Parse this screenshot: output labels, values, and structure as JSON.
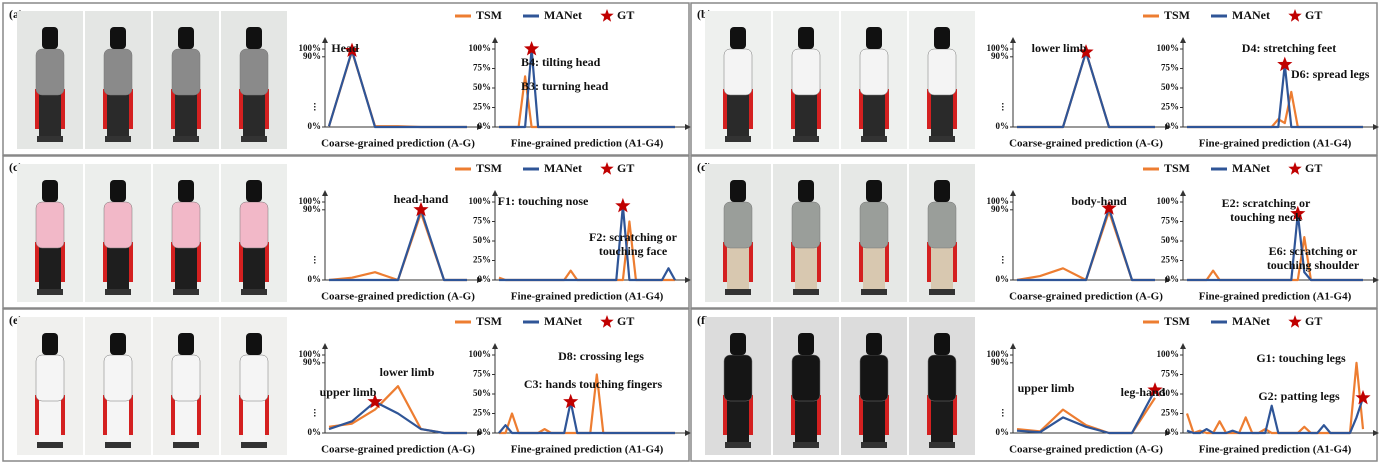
{
  "panels": [
    {
      "label": "(a)",
      "legend": {
        "series": [
          "TSM",
          "MANet"
        ],
        "colors": [
          "#ed7d31",
          "#2f5597"
        ],
        "gt": "GT",
        "gt_color": "#c00000"
      },
      "coarse": {
        "type": "line",
        "xlabel": "Coarse-grained prediction (A-G)",
        "ylim": [
          0,
          100
        ],
        "yticks": [
          {
            "value": 0,
            "label": "0%"
          },
          {
            "value": 90,
            "label": "90%"
          },
          {
            "value": 100,
            "label": "100%"
          }
        ],
        "series": [
          {
            "values": [
              1,
              97,
              1,
              1,
              0,
              0,
              0
            ]
          },
          {
            "values": [
              1,
              98,
              0,
              0,
              0,
              0,
              0
            ]
          }
        ],
        "gt": 1,
        "annotations": [
          [
            "Head"
          ]
        ]
      },
      "fine": {
        "type": "line",
        "xlabel": "Fine-grained prediction (A1-G4)",
        "ylim": [
          0,
          100
        ],
        "yticks": [
          {
            "value": 0,
            "label": "0%"
          },
          {
            "value": 25,
            "label": "25%"
          },
          {
            "value": 50,
            "label": "50%"
          },
          {
            "value": 75,
            "label": "75%"
          },
          {
            "value": 100,
            "label": "100%"
          }
        ],
        "series": [
          {
            "values": [
              0,
              0,
              0,
              0,
              65,
              0,
              0,
              0,
              0,
              0,
              0,
              0,
              0,
              0,
              0,
              0,
              0,
              0,
              0,
              0,
              0,
              0,
              0,
              0,
              0,
              0,
              0,
              0
            ]
          },
          {
            "values": [
              0,
              0,
              0,
              0,
              0,
              100,
              0,
              0,
              0,
              0,
              0,
              0,
              0,
              0,
              0,
              0,
              0,
              0,
              0,
              0,
              0,
              0,
              0,
              0,
              0,
              0,
              0,
              0
            ]
          }
        ],
        "gt": 5,
        "annotations": [
          [
            "B4: tilting head"
          ],
          [
            "B3: turning head"
          ]
        ]
      }
    },
    {
      "label": "(b)",
      "legend": {
        "series": [
          "TSM",
          "MANet"
        ],
        "colors": [
          "#ed7d31",
          "#2f5597"
        ],
        "gt": "GT",
        "gt_color": "#c00000"
      },
      "coarse": {
        "type": "line",
        "xlabel": "Coarse-grained prediction (A-G)",
        "ylim": [
          0,
          100
        ],
        "yticks": [
          {
            "value": 0,
            "label": "0%"
          },
          {
            "value": 90,
            "label": "90%"
          },
          {
            "value": 100,
            "label": "100%"
          }
        ],
        "series": [
          {
            "values": [
              0,
              0,
              0,
              96,
              0,
              0,
              0
            ]
          },
          {
            "values": [
              0,
              0,
              0,
              96,
              0,
              0,
              0
            ]
          }
        ],
        "gt": 3,
        "annotations": [
          [
            "lower limb"
          ]
        ]
      },
      "fine": {
        "type": "line",
        "xlabel": "Fine-grained prediction (A1-G4)",
        "ylim": [
          0,
          100
        ],
        "yticks": [
          {
            "value": 0,
            "label": "0%"
          },
          {
            "value": 25,
            "label": "25%"
          },
          {
            "value": 50,
            "label": "50%"
          },
          {
            "value": 75,
            "label": "75%"
          },
          {
            "value": 100,
            "label": "100%"
          }
        ],
        "series": [
          {
            "values": [
              0,
              0,
              0,
              0,
              0,
              0,
              0,
              0,
              0,
              0,
              0,
              0,
              0,
              0,
              10,
              5,
              45,
              0,
              0,
              0,
              0,
              0,
              0,
              0,
              0,
              0,
              0,
              0
            ]
          },
          {
            "values": [
              0,
              0,
              0,
              0,
              0,
              0,
              0,
              0,
              0,
              0,
              0,
              0,
              0,
              0,
              0,
              80,
              0,
              0,
              0,
              0,
              0,
              0,
              0,
              0,
              0,
              0,
              0,
              0
            ]
          }
        ],
        "gt": 15,
        "annotations": [
          [
            "D4: stretching feet"
          ],
          [
            "D6: spread legs"
          ]
        ]
      }
    },
    {
      "label": "(c)",
      "legend": {
        "series": [
          "TSM",
          "MANet"
        ],
        "colors": [
          "#ed7d31",
          "#2f5597"
        ],
        "gt": "GT",
        "gt_color": "#c00000"
      },
      "coarse": {
        "type": "line",
        "xlabel": "Coarse-grained prediction (A-G)",
        "ylim": [
          0,
          100
        ],
        "yticks": [
          {
            "value": 0,
            "label": "0%"
          },
          {
            "value": 90,
            "label": "90%"
          },
          {
            "value": 100,
            "label": "100%"
          }
        ],
        "series": [
          {
            "values": [
              0,
              3,
              10,
              0,
              86,
              0,
              0
            ]
          },
          {
            "values": [
              0,
              0,
              0,
              0,
              90,
              0,
              0
            ]
          }
        ],
        "gt": 4,
        "annotations": [
          [
            "head-hand"
          ]
        ]
      },
      "fine": {
        "type": "line",
        "xlabel": "Fine-grained prediction (A1-G4)",
        "ylim": [
          0,
          100
        ],
        "yticks": [
          {
            "value": 0,
            "label": "0%"
          },
          {
            "value": 25,
            "label": "25%"
          },
          {
            "value": 50,
            "label": "50%"
          },
          {
            "value": 75,
            "label": "75%"
          },
          {
            "value": 100,
            "label": "100%"
          }
        ],
        "series": [
          {
            "values": [
              3,
              0,
              0,
              0,
              0,
              0,
              0,
              0,
              0,
              0,
              0,
              12,
              0,
              0,
              0,
              0,
              0,
              0,
              0,
              0,
              75,
              0,
              0,
              0,
              0,
              0,
              0,
              0
            ]
          },
          {
            "values": [
              0,
              0,
              0,
              0,
              0,
              0,
              0,
              0,
              0,
              0,
              0,
              0,
              0,
              0,
              0,
              0,
              0,
              0,
              0,
              95,
              0,
              0,
              0,
              0,
              0,
              0,
              15,
              0
            ]
          }
        ],
        "gt": 19,
        "annotations": [
          [
            "F1: touching nose"
          ],
          [
            "F2: scratching or",
            "touching face"
          ]
        ]
      }
    },
    {
      "label": "(d)",
      "legend": {
        "series": [
          "TSM",
          "MANet"
        ],
        "colors": [
          "#ed7d31",
          "#2f5597"
        ],
        "gt": "GT",
        "gt_color": "#c00000"
      },
      "coarse": {
        "type": "line",
        "xlabel": "Coarse-grained prediction (A-G)",
        "ylim": [
          0,
          100
        ],
        "yticks": [
          {
            "value": 0,
            "label": "0%"
          },
          {
            "value": 90,
            "label": "90%"
          },
          {
            "value": 100,
            "label": "100%"
          }
        ],
        "series": [
          {
            "values": [
              0,
              5,
              15,
              0,
              88,
              0,
              0
            ]
          },
          {
            "values": [
              0,
              0,
              0,
              0,
              92,
              0,
              0
            ]
          }
        ],
        "gt": 4,
        "annotations": [
          [
            "body-hand"
          ]
        ]
      },
      "fine": {
        "type": "line",
        "xlabel": "Fine-grained prediction (A1-G4)",
        "ylim": [
          0,
          100
        ],
        "yticks": [
          {
            "value": 0,
            "label": "0%"
          },
          {
            "value": 25,
            "label": "25%"
          },
          {
            "value": 50,
            "label": "50%"
          },
          {
            "value": 75,
            "label": "75%"
          },
          {
            "value": 100,
            "label": "100%"
          }
        ],
        "series": [
          {
            "values": [
              0,
              0,
              0,
              0,
              12,
              0,
              0,
              0,
              0,
              0,
              0,
              0,
              0,
              0,
              0,
              0,
              0,
              0,
              55,
              0,
              0,
              0,
              0,
              0,
              0,
              0,
              0,
              0
            ]
          },
          {
            "values": [
              0,
              0,
              0,
              0,
              0,
              0,
              0,
              0,
              0,
              0,
              0,
              0,
              0,
              0,
              0,
              0,
              0,
              85,
              10,
              0,
              0,
              0,
              0,
              0,
              0,
              0,
              0,
              0
            ]
          }
        ],
        "gt": 17,
        "annotations": [
          [
            "E2: scratching or",
            "touching neck"
          ],
          [
            "E6: scratching or",
            "touching shoulder"
          ]
        ]
      }
    },
    {
      "label": "(e)",
      "legend": {
        "series": [
          "TSM",
          "MANet"
        ],
        "colors": [
          "#ed7d31",
          "#2f5597"
        ],
        "gt": "GT",
        "gt_color": "#c00000"
      },
      "coarse": {
        "type": "line",
        "xlabel": "Coarse-grained prediction (A-G)",
        "ylim": [
          0,
          100
        ],
        "yticks": [
          {
            "value": 0,
            "label": "0%"
          },
          {
            "value": 90,
            "label": "90%"
          },
          {
            "value": 100,
            "label": "100%"
          }
        ],
        "series": [
          {
            "values": [
              8,
              12,
              30,
              60,
              5,
              0,
              0
            ]
          },
          {
            "values": [
              5,
              15,
              40,
              25,
              5,
              0,
              0
            ]
          }
        ],
        "gt": 2,
        "annotations": [
          [
            "lower limb"
          ],
          [
            "upper limb"
          ]
        ]
      },
      "fine": {
        "type": "line",
        "xlabel": "Fine-grained prediction (A1-G4)",
        "ylim": [
          0,
          100
        ],
        "yticks": [
          {
            "value": 0,
            "label": "0%"
          },
          {
            "value": 25,
            "label": "25%"
          },
          {
            "value": 50,
            "label": "50%"
          },
          {
            "value": 75,
            "label": "75%"
          },
          {
            "value": 100,
            "label": "100%"
          }
        ],
        "series": [
          {
            "values": [
              0,
              0,
              25,
              0,
              0,
              0,
              0,
              5,
              0,
              0,
              0,
              0,
              0,
              0,
              0,
              75,
              0,
              0,
              0,
              0,
              0,
              0,
              0,
              0,
              0,
              0,
              0,
              0
            ]
          },
          {
            "values": [
              0,
              10,
              0,
              0,
              0,
              0,
              0,
              0,
              0,
              0,
              0,
              40,
              0,
              0,
              0,
              0,
              0,
              0,
              0,
              0,
              0,
              0,
              0,
              0,
              0,
              0,
              0,
              0
            ]
          }
        ],
        "gt": 11,
        "annotations": [
          [
            "D8: crossing legs"
          ],
          [
            "C3: hands touching fingers"
          ]
        ]
      }
    },
    {
      "label": "(f)",
      "legend": {
        "series": [
          "TSM",
          "MANet"
        ],
        "colors": [
          "#ed7d31",
          "#2f5597"
        ],
        "gt": "GT",
        "gt_color": "#c00000"
      },
      "coarse": {
        "type": "line",
        "xlabel": "Coarse-grained prediction (A-G)",
        "ylim": [
          0,
          100
        ],
        "yticks": [
          {
            "value": 0,
            "label": "0%"
          },
          {
            "value": 90,
            "label": "90%"
          },
          {
            "value": 100,
            "label": "100%"
          }
        ],
        "series": [
          {
            "values": [
              5,
              2,
              30,
              10,
              0,
              0,
              45
            ]
          },
          {
            "values": [
              3,
              1,
              20,
              8,
              0,
              0,
              55
            ]
          }
        ],
        "gt": 6,
        "annotations": [
          [
            "upper limb"
          ],
          [
            "leg-hand"
          ]
        ]
      },
      "fine": {
        "type": "line",
        "xlabel": "Fine-grained prediction (A1-G4)",
        "ylim": [
          0,
          100
        ],
        "yticks": [
          {
            "value": 0,
            "label": "0%"
          },
          {
            "value": 25,
            "label": "25%"
          },
          {
            "value": 50,
            "label": "50%"
          },
          {
            "value": 75,
            "label": "75%"
          },
          {
            "value": 100,
            "label": "100%"
          }
        ],
        "series": [
          {
            "values": [
              25,
              0,
              3,
              0,
              0,
              15,
              0,
              0,
              0,
              20,
              0,
              0,
              5,
              0,
              0,
              0,
              0,
              0,
              8,
              0,
              0,
              0,
              0,
              0,
              0,
              0,
              90,
              5
            ]
          },
          {
            "values": [
              3,
              0,
              0,
              5,
              0,
              0,
              0,
              3,
              0,
              0,
              0,
              0,
              0,
              35,
              0,
              0,
              0,
              0,
              0,
              0,
              0,
              10,
              0,
              0,
              0,
              0,
              20,
              45
            ]
          }
        ],
        "gt": 27,
        "annotations": [
          [
            "G1: touching legs"
          ],
          [
            "G2: patting legs"
          ]
        ]
      }
    }
  ]
}
